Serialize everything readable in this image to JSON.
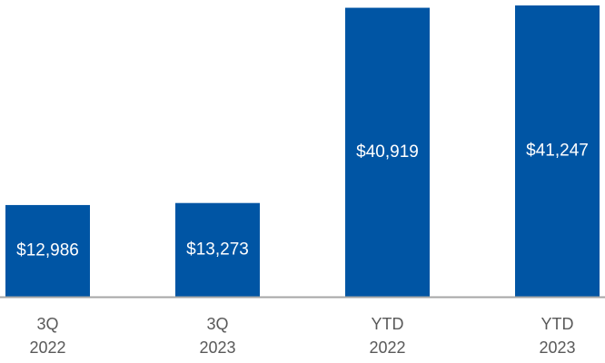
{
  "chart_data": {
    "type": "bar",
    "categories": [
      "3Q 2022",
      "3Q 2023",
      "YTD 2022",
      "YTD 2023"
    ],
    "category_lines": [
      [
        "3Q",
        "2022"
      ],
      [
        "3Q",
        "2023"
      ],
      [
        "YTD",
        "2022"
      ],
      [
        "YTD",
        "2023"
      ]
    ],
    "values": [
      12986,
      13273,
      40919,
      41247
    ],
    "value_labels": [
      "$12,986",
      "$13,273",
      "$40,919",
      "$41,247"
    ],
    "title": "",
    "xlabel": "",
    "ylabel": "",
    "ylim": [
      0,
      41247
    ],
    "grid": false,
    "legend": "none"
  },
  "colors": {
    "bar": "#0055A4",
    "axis": "#A6A6A6",
    "tick_text": "#595959",
    "value_text": "#FFFFFF"
  }
}
